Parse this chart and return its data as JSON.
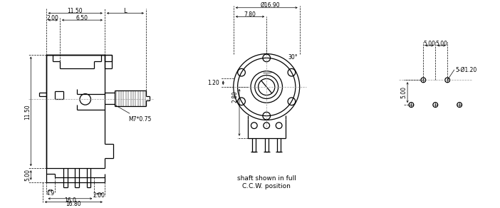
{
  "bg_color": "#ffffff",
  "lc": "#000000",
  "dim_lc": "#000000",
  "dash_lc": "#999999",
  "figsize": [
    7.02,
    2.92
  ],
  "dpi": 100,
  "lw_body": 0.9,
  "lw_dim": 0.5,
  "lw_dash": 0.5,
  "fs": 5.5,
  "texts": {
    "dim_11_50_top": "11.50",
    "dim_L": "L",
    "dim_2_00_top": "2.00",
    "dim_6_50": "6.50",
    "dim_11_50_side": "11.50",
    "dim_5_00_side": "5.00",
    "dim_4_9": "4.9",
    "dim_2_00_bot": "2.00",
    "dim_16_0": "16.0",
    "dim_16_80": "16.80",
    "M7": "M7*0.75",
    "dim_dia_16_90": "Ø16.90",
    "dim_7_80": "7.80",
    "dim_30": "30°",
    "dim_1_20": "1.20",
    "dim_2_80": "2.80",
    "shaft_text1": "shaft shown in full",
    "shaft_text2": "C.C.W. position",
    "dim_5_00_h": "5.00",
    "dim_5_00_h2": "5.00",
    "dim_5_00_v": "5.00",
    "dim_dia_1_20": "5-Ø1.20"
  }
}
